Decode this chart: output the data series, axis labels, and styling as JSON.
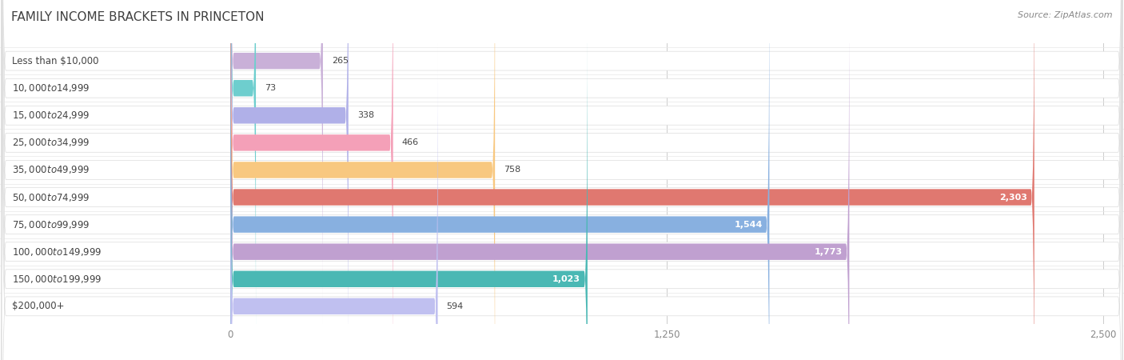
{
  "title": "FAMILY INCOME BRACKETS IN PRINCETON",
  "source": "Source: ZipAtlas.com",
  "categories": [
    "Less than $10,000",
    "$10,000 to $14,999",
    "$15,000 to $24,999",
    "$25,000 to $34,999",
    "$35,000 to $49,999",
    "$50,000 to $74,999",
    "$75,000 to $99,999",
    "$100,000 to $149,999",
    "$150,000 to $199,999",
    "$200,000+"
  ],
  "values": [
    265,
    73,
    338,
    466,
    758,
    2303,
    1544,
    1773,
    1023,
    594
  ],
  "bar_colors": [
    "#c9b0d8",
    "#6ecece",
    "#b0b0e8",
    "#f4a0b8",
    "#f8c880",
    "#e07870",
    "#88b0e0",
    "#c0a0d0",
    "#4ab8b4",
    "#c0c0f0"
  ],
  "data_max": 2500,
  "xticks": [
    0,
    1250,
    2500
  ],
  "background_color": "#ffffff",
  "row_bg_color": "#f0f0f0",
  "label_inside_threshold": 800,
  "figsize": [
    14.06,
    4.5
  ],
  "dpi": 100,
  "title_color": "#404040",
  "source_color": "#888888",
  "label_color_dark": "#444444",
  "label_color_light": "#ffffff",
  "tick_color": "#888888"
}
